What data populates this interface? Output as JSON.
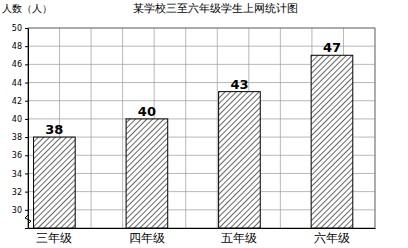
{
  "chart_data": {
    "type": "bar",
    "title": "某学校三至六年级学生上网统计图",
    "y_label": "人数（人）",
    "categories": [
      "三年级",
      "四年级",
      "五年级",
      "六年级"
    ],
    "values": [
      38,
      40,
      43,
      47
    ],
    "color": "#000000",
    "ylim": [
      28,
      50
    ],
    "yticks": [
      30,
      32,
      34,
      36,
      38,
      40,
      42,
      44,
      46,
      48,
      50
    ],
    "grid": true,
    "data_labels": true
  }
}
